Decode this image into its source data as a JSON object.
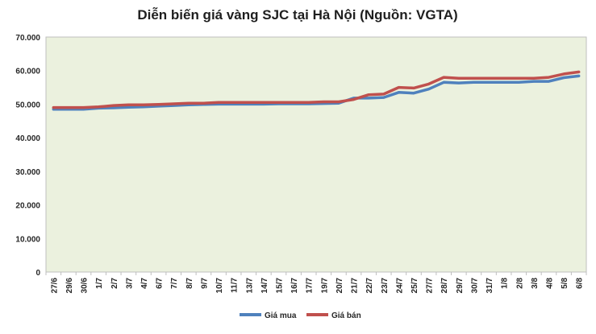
{
  "chart_data": {
    "type": "line",
    "title": "Diễn biến giá vàng SJC tại Hà Nội (Nguồn: VGTA)",
    "xlabel": "",
    "ylabel": "",
    "ylim": [
      0,
      70000
    ],
    "yticks": [
      0,
      10000,
      20000,
      30000,
      40000,
      50000,
      60000,
      70000
    ],
    "ytick_labels": [
      "0",
      "10.000",
      "20.000",
      "30.000",
      "40.000",
      "50.000",
      "60.000",
      "70.000"
    ],
    "grid": false,
    "legend_position": "bottom",
    "categories": [
      "27/6",
      "29/6",
      "30/6",
      "1/7",
      "2/7",
      "3/7",
      "4/7",
      "6/7",
      "7/7",
      "8/7",
      "9/7",
      "10/7",
      "11/7",
      "13/7",
      "14/7",
      "15/7",
      "16/7",
      "17/7",
      "19/7",
      "20/7",
      "21/7",
      "22/7",
      "23/7",
      "24/7",
      "25/7",
      "27/7",
      "28/7",
      "29/7",
      "30/7",
      "31/7",
      "1/8",
      "2/8",
      "3/8",
      "4/8",
      "5/8",
      "6/8"
    ],
    "series": [
      {
        "name": "Giá mua",
        "color": "#4f81bd",
        "values": [
          48500,
          48500,
          48500,
          48800,
          48900,
          49100,
          49200,
          49400,
          49600,
          49800,
          49900,
          50000,
          50000,
          50000,
          50000,
          50100,
          50100,
          50100,
          50200,
          50300,
          51800,
          51800,
          52000,
          53500,
          53300,
          54500,
          56500,
          56300,
          56500,
          56500,
          56500,
          56500,
          56800,
          56800,
          57900,
          58400
        ]
      },
      {
        "name": "Giá bán",
        "color": "#c0504d",
        "values": [
          49000,
          49000,
          49000,
          49200,
          49600,
          49800,
          49800,
          49900,
          50100,
          50300,
          50300,
          50500,
          50500,
          50500,
          50500,
          50500,
          50500,
          50500,
          50700,
          50700,
          51400,
          52800,
          53000,
          55000,
          54800,
          56000,
          58000,
          57700,
          57700,
          57700,
          57700,
          57700,
          57700,
          58000,
          59000,
          59600
        ]
      }
    ]
  }
}
